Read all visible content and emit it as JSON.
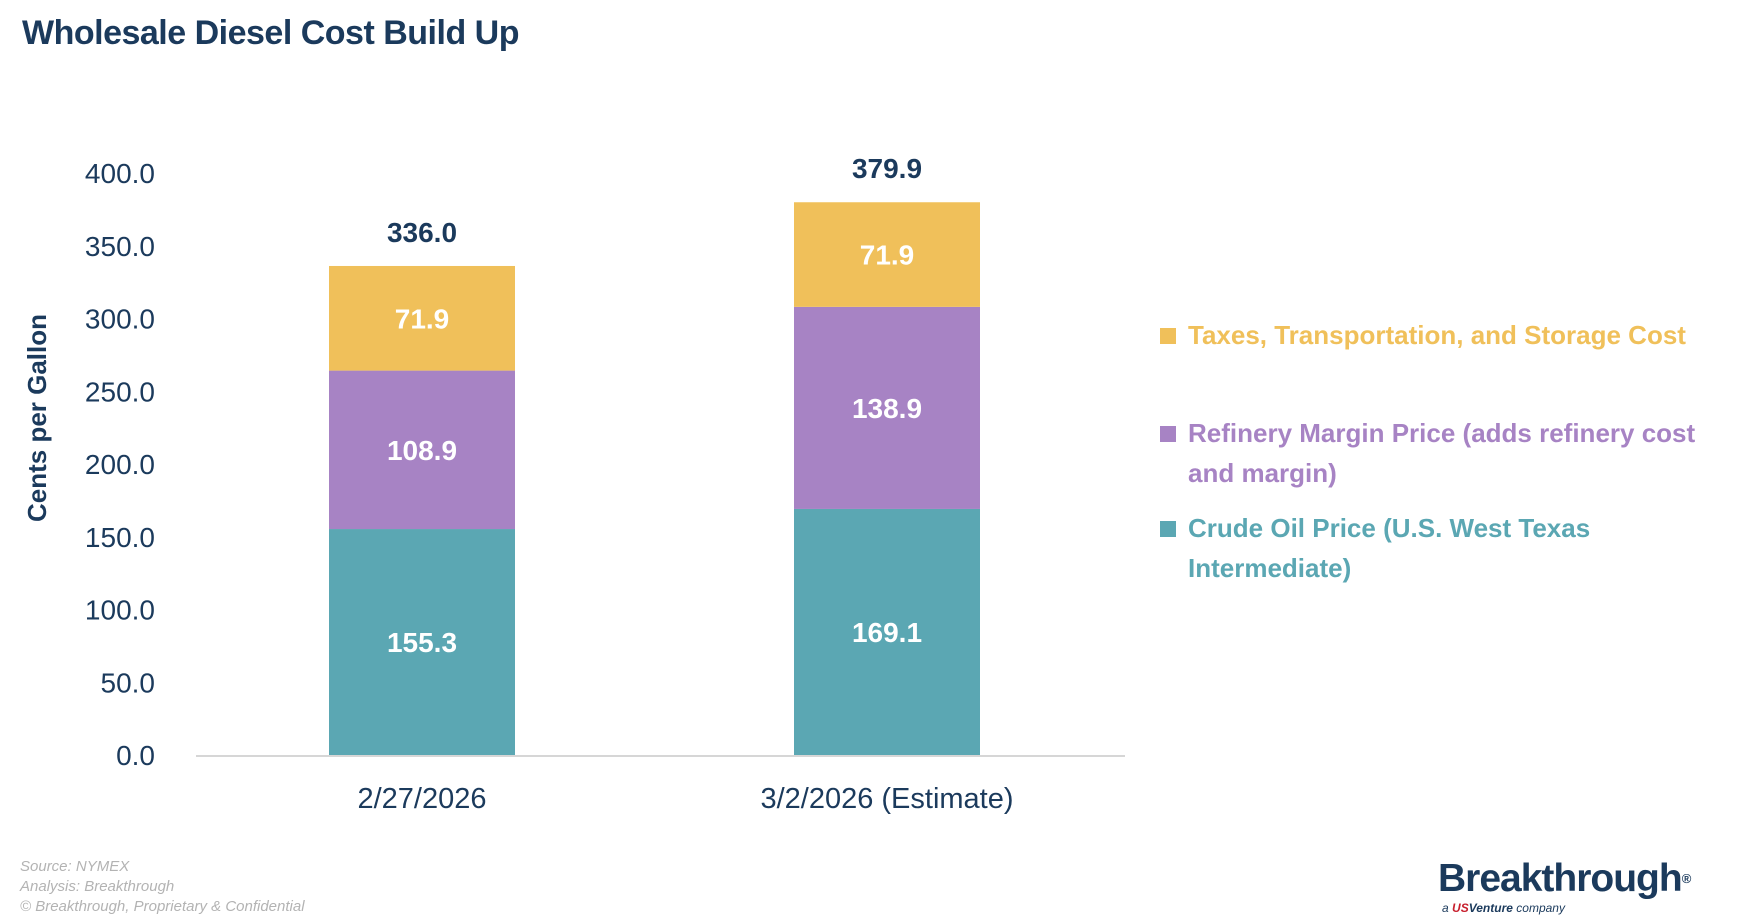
{
  "chart_data": {
    "type": "bar",
    "stacked": true,
    "title": "Wholesale Diesel Cost Build Up",
    "ylabel": "Cents per Gallon",
    "xlabel": "",
    "ylim": [
      0,
      400
    ],
    "yticks": [
      "0.0",
      "50.0",
      "100.0",
      "150.0",
      "200.0",
      "250.0",
      "300.0",
      "350.0",
      "400.0"
    ],
    "categories": [
      "2/27/2026",
      "3/2/2026 (Estimate)"
    ],
    "series": [
      {
        "name": "Crude Oil Price (U.S. West Texas Intermediate)",
        "values": [
          155.3,
          169.1
        ],
        "labels": [
          "155.3",
          "169.1"
        ],
        "color": "#5ba7b3"
      },
      {
        "name": "Refinery Margin Price (adds refinery cost and margin)",
        "values": [
          108.9,
          138.9
        ],
        "labels": [
          "108.9",
          "138.9"
        ],
        "color": "#a783c4"
      },
      {
        "name": "Taxes, Transportation, and Storage Cost",
        "values": [
          71.9,
          71.9
        ],
        "labels": [
          "71.9",
          "71.9"
        ],
        "color": "#f0c05a"
      }
    ],
    "totals": [
      336.0,
      379.9
    ],
    "total_labels": [
      "336.0",
      "379.9"
    ],
    "legend_position": "right"
  },
  "legend": {
    "taxes": {
      "label": "Taxes, Transportation, and Storage Cost",
      "color": "#f0c05a"
    },
    "refinery": {
      "label": "Refinery Margin Price (adds refinery cost and margin)",
      "color": "#a783c4"
    },
    "crude": {
      "label": "Crude Oil Price (U.S. West Texas Intermediate)",
      "color": "#5ba7b3"
    }
  },
  "footer": {
    "source": "Source: NYMEX",
    "analysis": "Analysis: Breakthrough",
    "copyright": "© Breakthrough, Proprietary & Confidential"
  },
  "logo": {
    "word": "Breakthrough",
    "mark": "®",
    "sub_a": "a",
    "sub_us": "US",
    "sub_venture": "Venture",
    "sub_company": "company"
  },
  "colors": {
    "title": "#1b3a5c",
    "axis_text": "#1b3a5c",
    "baseline": "#d6d6d6",
    "footer_text": "#b3b3b3"
  }
}
